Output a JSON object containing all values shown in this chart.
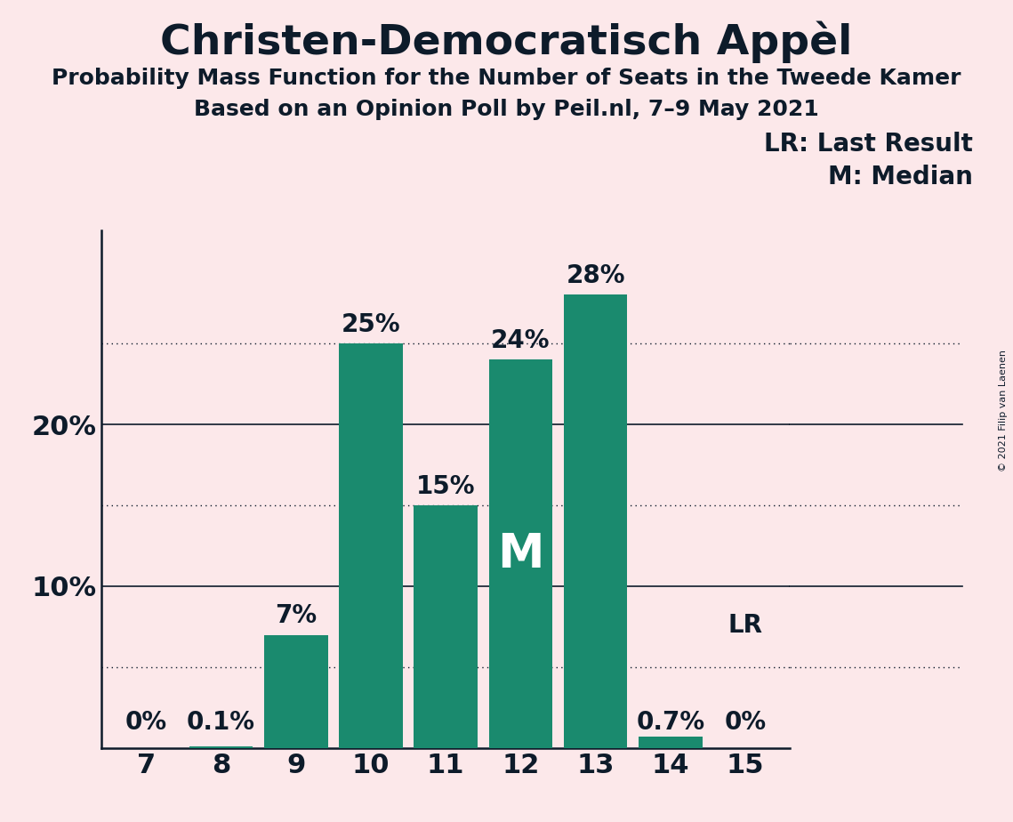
{
  "title": "Christen-Democratisch Appèl",
  "subtitle1": "Probability Mass Function for the Number of Seats in the Tweede Kamer",
  "subtitle2": "Based on an Opinion Poll by Peil.nl, 7–9 May 2021",
  "copyright": "© 2021 Filip van Laenen",
  "categories": [
    7,
    8,
    9,
    10,
    11,
    12,
    13,
    14,
    15
  ],
  "values": [
    0.0,
    0.001,
    0.07,
    0.25,
    0.15,
    0.24,
    0.28,
    0.007,
    0.0
  ],
  "bar_labels": [
    "0%",
    "0.1%",
    "7%",
    "25%",
    "15%",
    "24%",
    "28%",
    "0.7%",
    "0%"
  ],
  "bar_color": "#1a8a6e",
  "background_color": "#fce8ea",
  "text_color": "#0d1b2a",
  "median_bar_seat": 12,
  "median_label": "M",
  "lr_bar_seat": 15,
  "lr_label": "LR",
  "legend_lr": "LR: Last Result",
  "legend_m": "M: Median",
  "ylim": [
    0,
    0.32
  ],
  "yticks": [
    0.0,
    0.1,
    0.2
  ],
  "ytick_labels": [
    "",
    "10%",
    "20%"
  ],
  "solid_lines": [
    0.1,
    0.2
  ],
  "dotted_lines": [
    0.05,
    0.15,
    0.25
  ],
  "title_fontsize": 34,
  "subtitle_fontsize": 18,
  "axis_tick_fontsize": 22,
  "bar_label_fontsize": 20,
  "legend_fontsize": 20,
  "median_fontsize": 38
}
